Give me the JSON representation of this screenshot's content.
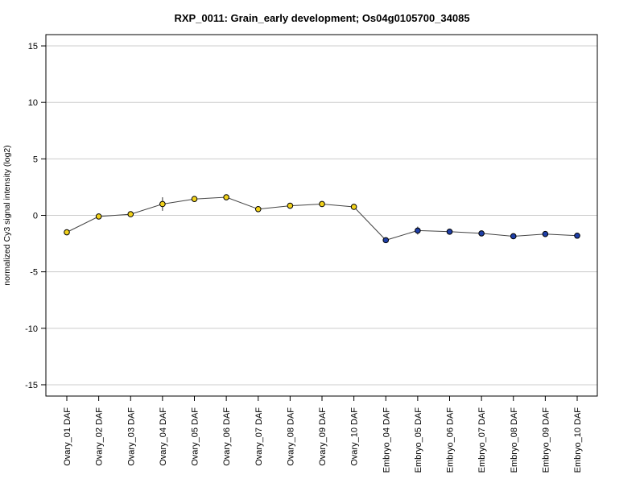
{
  "chart_data": {
    "type": "line",
    "title": "RXP_0011: Grain_early development; Os04g0105700_34085",
    "ylabel": "normalized Cy3 signal intensity (log2)",
    "xlabel": "",
    "ylim": [
      -16,
      16
    ],
    "yticks": [
      15,
      10,
      5,
      0,
      -5,
      -10,
      -15
    ],
    "grid": "horizontal",
    "categories": [
      "Ovary_01 DAF",
      "Ovary_02 DAF",
      "Ovary_03 DAF",
      "Ovary_04 DAF",
      "Ovary_05 DAF",
      "Ovary_06 DAF",
      "Ovary_07 DAF",
      "Ovary_08 DAF",
      "Ovary_09 DAF",
      "Ovary_10 DAF",
      "Embryo_04 DAF",
      "Embryo_05 DAF",
      "Embryo_06 DAF",
      "Embryo_07 DAF",
      "Embryo_08 DAF",
      "Embryo_09 DAF",
      "Embryo_10 DAF"
    ],
    "values": [
      -1.5,
      -0.1,
      0.1,
      1.0,
      1.45,
      1.6,
      0.55,
      0.85,
      1.0,
      0.75,
      -2.2,
      -1.35,
      -1.45,
      -1.6,
      -1.85,
      -1.65,
      -1.8
    ],
    "errors": [
      0.15,
      0.15,
      0.2,
      0.6,
      0.2,
      0.15,
      0.15,
      0.25,
      0.15,
      0.2,
      0.15,
      0.35,
      0.15,
      0.15,
      0.15,
      0.15,
      0.15
    ],
    "point_colors": [
      "#f2d21b",
      "#f2d21b",
      "#f2d21b",
      "#f2d21b",
      "#f2d21b",
      "#f2d21b",
      "#f2d21b",
      "#f2d21b",
      "#f2d21b",
      "#f2d21b",
      "#1f3fa8",
      "#1f3fa8",
      "#1f3fa8",
      "#1f3fa8",
      "#1f3fa8",
      "#1f3fa8",
      "#1f3fa8"
    ],
    "line_color": "#444444",
    "grid_color": "#cccccc"
  }
}
